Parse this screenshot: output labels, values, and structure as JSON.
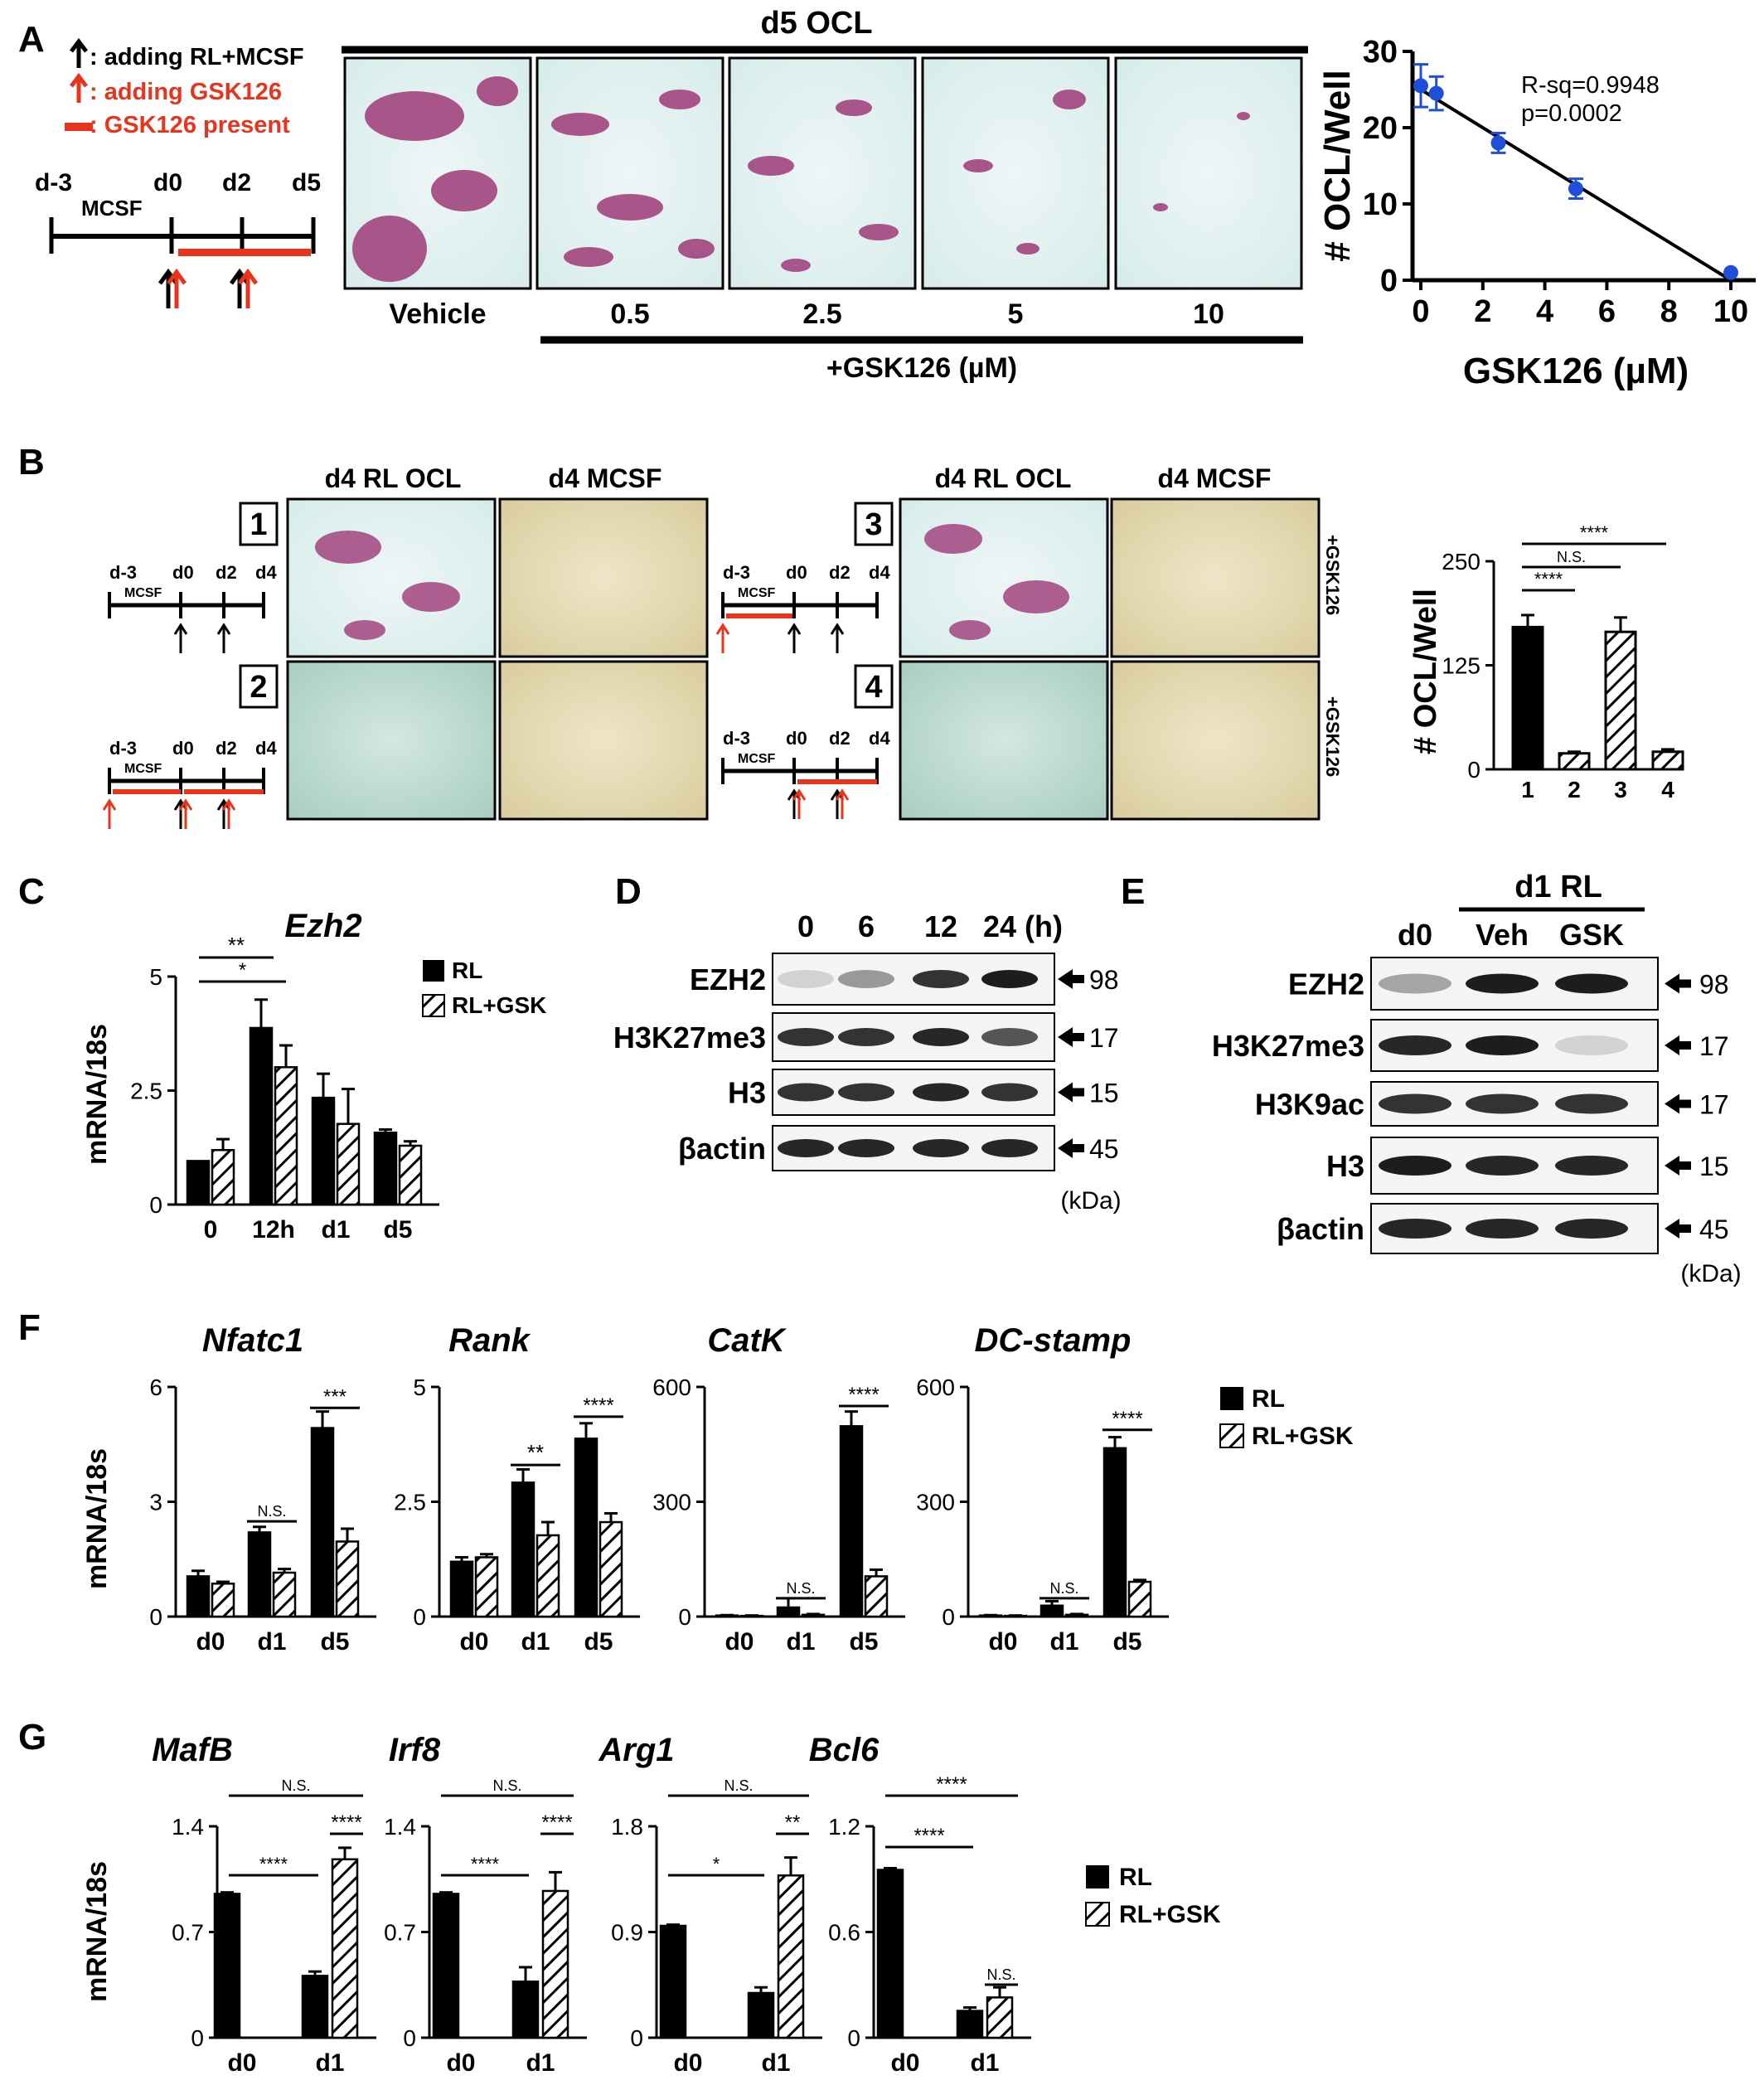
{
  "colors": {
    "black": "#000000",
    "red": "#e8341c",
    "blue": "#1f4fd8",
    "gray": "#777777"
  },
  "panels": {
    "A": "A",
    "B": "B",
    "C": "C",
    "D": "D",
    "E": "E",
    "F": "F",
    "G": "G"
  },
  "panel_a": {
    "legend": {
      "black_arrow": ": adding RL+MCSF",
      "red_arrow": ": adding GSK126",
      "red_bar": ": GSK126 present"
    },
    "timeline": {
      "ticks": [
        "d-3",
        "d0",
        "d2",
        "d5"
      ],
      "mcsf": "MCSF"
    },
    "header": "d5 OCL",
    "image_labels": [
      "Vehicle",
      "0.5",
      "2.5",
      "5",
      "10"
    ],
    "treatment_label": "+GSK126 (µM)",
    "stats": {
      "rsq": "R-sq=0.9948",
      "p": "p=0.0002"
    }
  },
  "panel_b": {
    "col_headers": [
      "d4 RL OCL",
      "d4 MCSF",
      "d4 RL OCL",
      "d4 MCSF"
    ],
    "boxes": [
      "1",
      "2",
      "3",
      "4"
    ],
    "timeline_ticks": [
      "d-3",
      "d0",
      "d2",
      "d4"
    ],
    "mcsf": "MCSF",
    "side_labels": [
      "+GSK126",
      "+GSK126"
    ],
    "sig": [
      "****",
      "N.S.",
      "****"
    ]
  },
  "panel_c": {
    "sig": [
      "**",
      "*"
    ],
    "legend": [
      "RL",
      "RL+GSK"
    ]
  },
  "panel_d": {
    "times": [
      "0",
      "6",
      "12",
      "24 (h)"
    ],
    "rows": [
      "EZH2",
      "H3K27me3",
      "H3",
      "βactin"
    ],
    "kda": [
      "98",
      "17",
      "15",
      "45"
    ],
    "kda_unit": "(kDa)"
  },
  "panel_e": {
    "group": "d1 RL",
    "lanes": [
      "d0",
      "Veh",
      "GSK"
    ],
    "rows": [
      "EZH2",
      "H3K27me3",
      "H3K9ac",
      "H3",
      "βactin"
    ],
    "kda": [
      "98",
      "17",
      "17",
      "15",
      "45"
    ],
    "kda_unit": "(kDa)"
  },
  "panel_f": {
    "ylabel": "mRNA/18s",
    "legend": [
      "RL",
      "RL+GSK"
    ],
    "sig": [
      [
        "N.S.",
        "***"
      ],
      [
        "**",
        "****"
      ],
      [
        "N.S.",
        "****"
      ],
      [
        "N.S.",
        "****"
      ]
    ]
  },
  "panel_g": {
    "ylabel": "mRNA/18s",
    "legend": [
      "RL",
      "RL+GSK"
    ],
    "sig": [
      [
        "****",
        "****",
        "N.S."
      ],
      [
        "****",
        "****",
        "N.S."
      ],
      [
        "*",
        "**",
        "N.S."
      ],
      [
        "****",
        "N.S.",
        "****"
      ]
    ]
  },
  "chart_data": [
    {
      "id": "A",
      "type": "scatter",
      "xlabel": "GSK126 (µM)",
      "ylabel": "# OCL/Well",
      "x": [
        0,
        0.5,
        2.5,
        5,
        10
      ],
      "y": [
        25.5,
        24.5,
        18,
        12,
        1
      ],
      "err": [
        2.8,
        2.2,
        1.3,
        1.3,
        0
      ],
      "fit": {
        "x": [
          0,
          10
        ],
        "y": [
          25,
          0
        ]
      },
      "xlim": [
        0,
        10
      ],
      "ylim": [
        0,
        30
      ],
      "xticks": [
        "0",
        "2",
        "4",
        "6",
        "8",
        "10"
      ],
      "yticks": [
        "0",
        "10",
        "20",
        "30"
      ]
    },
    {
      "id": "B",
      "type": "bar",
      "ylabel": "# OCL/Well",
      "categories": [
        "1",
        "2",
        "3",
        "4"
      ],
      "values": [
        178,
        20,
        172,
        22
      ],
      "err": [
        15,
        2,
        18,
        3
      ],
      "patterns": [
        "solid",
        "hatch",
        "hatch",
        "hatch"
      ],
      "ylim": [
        0,
        250
      ],
      "yticks": [
        "0",
        "125",
        "250"
      ]
    },
    {
      "id": "C",
      "type": "bar",
      "title": "Ezh2",
      "ylabel": "mRNA/18s",
      "categories": [
        "0",
        "12h",
        "d1",
        "d5"
      ],
      "series": [
        {
          "name": "RL",
          "values": [
            1.0,
            4.05,
            2.45,
            1.65
          ],
          "err": [
            0,
            0.65,
            0.55,
            0.07
          ]
        },
        {
          "name": "RL+GSK",
          "values": [
            1.25,
            3.15,
            1.85,
            1.35
          ],
          "err": [
            0.25,
            0.5,
            0.8,
            0.1
          ]
        }
      ],
      "ylim": [
        0,
        5
      ],
      "yticks": [
        "0",
        "2.5",
        "5"
      ]
    },
    {
      "id": "F1",
      "type": "bar",
      "title": "Nfatc1",
      "categories": [
        "d0",
        "d1",
        "d5"
      ],
      "series": [
        {
          "name": "RL",
          "values": [
            1.1,
            2.3,
            5.15
          ],
          "err": [
            0.15,
            0.15,
            0.45
          ]
        },
        {
          "name": "RL+GSK",
          "values": [
            0.9,
            1.2,
            2.05
          ],
          "err": [
            0.05,
            0.1,
            0.35
          ]
        }
      ],
      "ylim": [
        0,
        6
      ],
      "yticks": [
        "0",
        "3",
        "6"
      ]
    },
    {
      "id": "F2",
      "type": "bar",
      "title": "Rank",
      "categories": [
        "d0",
        "d1",
        "d5"
      ],
      "series": [
        {
          "name": "RL",
          "values": [
            1.25,
            3.05,
            4.05
          ],
          "err": [
            0.1,
            0.3,
            0.35
          ]
        },
        {
          "name": "RL+GSK",
          "values": [
            1.35,
            1.85,
            2.15
          ],
          "err": [
            0.07,
            0.3,
            0.2
          ]
        }
      ],
      "ylim": [
        0,
        5
      ],
      "yticks": [
        "0",
        "2.5",
        "5"
      ]
    },
    {
      "id": "F3",
      "type": "bar",
      "title": "CatK",
      "categories": [
        "d0",
        "d1",
        "d5"
      ],
      "series": [
        {
          "name": "RL",
          "values": [
            3,
            25,
            520
          ],
          "err": [
            1,
            25,
            40
          ]
        },
        {
          "name": "RL+GSK",
          "values": [
            2,
            5,
            110
          ],
          "err": [
            1,
            2,
            18
          ]
        }
      ],
      "ylim": [
        0,
        600
      ],
      "yticks": [
        "0",
        "300",
        "600"
      ]
    },
    {
      "id": "F4",
      "type": "bar",
      "title": "DC-stamp",
      "categories": [
        "d0",
        "d1",
        "d5"
      ],
      "series": [
        {
          "name": "RL",
          "values": [
            3,
            30,
            460
          ],
          "err": [
            1,
            12,
            30
          ]
        },
        {
          "name": "RL+GSK",
          "values": [
            2,
            5,
            95
          ],
          "err": [
            1,
            2,
            5
          ]
        }
      ],
      "ylim": [
        0,
        600
      ],
      "yticks": [
        "0",
        "300",
        "600"
      ]
    },
    {
      "id": "G1",
      "type": "bar",
      "title": "MafB",
      "categories": [
        "d0",
        "d1"
      ],
      "series": [
        {
          "name": "RL",
          "values": [
            1.0,
            0.43
          ],
          "err": [
            0.01,
            0.03
          ]
        },
        {
          "name": "RL+GSK",
          "values": [
            null,
            1.24
          ],
          "err": [
            null,
            0.08
          ]
        }
      ],
      "ylim": [
        0,
        1.4
      ],
      "yticks": [
        "0",
        "0.7",
        "1.4"
      ]
    },
    {
      "id": "G2",
      "type": "bar",
      "title": "Irf8",
      "categories": [
        "d0",
        "d1"
      ],
      "series": [
        {
          "name": "RL",
          "values": [
            1.0,
            0.39
          ],
          "err": [
            0.01,
            0.1
          ]
        },
        {
          "name": "RL+GSK",
          "values": [
            null,
            1.02
          ],
          "err": [
            null,
            0.13
          ]
        }
      ],
      "ylim": [
        0,
        1.4
      ],
      "yticks": [
        "0",
        "0.7",
        "1.4"
      ]
    },
    {
      "id": "G3",
      "type": "bar",
      "title": "Arg1",
      "categories": [
        "d0",
        "d1"
      ],
      "series": [
        {
          "name": "RL",
          "values": [
            1.0,
            0.4
          ],
          "err": [
            0.01,
            0.05
          ]
        },
        {
          "name": "RL+GSK",
          "values": [
            null,
            1.45
          ],
          "err": [
            null,
            0.16
          ]
        }
      ],
      "ylim": [
        0,
        1.8
      ],
      "yticks": [
        "0",
        "0.9",
        "1.8"
      ]
    },
    {
      "id": "G4",
      "type": "bar",
      "title": "Bcl6",
      "categories": [
        "d0",
        "d1"
      ],
      "series": [
        {
          "name": "RL",
          "values": [
            1.0,
            0.16
          ],
          "err": [
            0.01,
            0.02
          ]
        },
        {
          "name": "RL+GSK",
          "values": [
            null,
            0.24
          ],
          "err": [
            null,
            0.06
          ]
        }
      ],
      "ylim": [
        0,
        1.2
      ],
      "yticks": [
        "0",
        "0.6",
        "1.2"
      ]
    }
  ]
}
